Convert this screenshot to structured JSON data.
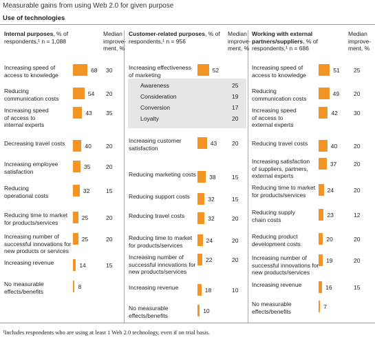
{
  "title": "Measurable gains from using Web 2.0 for given purpose",
  "subtitle": "Use of technologies",
  "footnote": "¹Includes respondents who are using at least 1 Web 2.0 technology, even if on trial basis.",
  "colors": {
    "bar": "#f39525",
    "subpanel": "#e6e6e6"
  },
  "chart_data": [
    {
      "type": "bar",
      "title": "Internal purposes",
      "header_rest": ", % of respondents,¹ n = 1,088",
      "median_header": "Median improve-ment, %",
      "xlim": [
        0,
        100
      ],
      "categories": [
        "Increasing speed of access to knowledge",
        "Reducing communication costs",
        "Increasing speed of access to internal experts",
        "Decreasing travel costs",
        "Increasing employee satisfaction",
        "Reducing operational costs",
        "Reducing time to market for products/services",
        "Increasing number of successful innovations for new products or services",
        "Increasing revenue",
        "No measurable effects/benefits"
      ],
      "label_lines": [
        [
          "Increasing speed of",
          "access to knowledge"
        ],
        [
          "Reducing",
          "communication costs"
        ],
        [
          "Increasing speed",
          "of access to",
          "internal experts"
        ],
        [
          "Decreasing travel costs"
        ],
        [
          "Increasing employee",
          "satisfaction"
        ],
        [
          "Reducing",
          "operational costs"
        ],
        [
          "Reducing time to market",
          "for products/services"
        ],
        [
          "Increasing number of",
          "successful innovations for",
          "new products or services"
        ],
        [
          "Increasing revenue"
        ],
        [
          "No measurable",
          "effects/benefits"
        ]
      ],
      "values": [
        68,
        54,
        43,
        40,
        35,
        32,
        25,
        25,
        14,
        8
      ],
      "median": [
        "30",
        "20",
        "35",
        "20",
        "20",
        "15",
        "20",
        "20",
        "15",
        ""
      ]
    },
    {
      "type": "bar",
      "title": "Customer-related purposes",
      "header_rest": ", % of respondents,¹ n = 956",
      "median_header": "Median improve-ment, %",
      "xlim": [
        0,
        100
      ],
      "categories": [
        "Increasing effectiveness of marketing",
        "Increasing customer satisfaction",
        "Reducing marketing costs",
        "Reducing support costs",
        "Reducing travel costs",
        "Reducing time to market for products/services",
        "Increasing number of successful innovations for new products/services",
        "Increasing revenue",
        "No measurable effects/benefits"
      ],
      "label_lines": [
        [
          "Increasing effectiveness",
          "of marketing"
        ],
        [
          "Increasing customer",
          "satisfaction"
        ],
        [
          "Reducing marketing costs"
        ],
        [
          "Reducing support costs"
        ],
        [
          "Reducing travel costs"
        ],
        [
          "Reducing time to market",
          "for products/services"
        ],
        [
          "Increasing number of",
          "successful innovations for",
          "new products/services"
        ],
        [
          "Increasing revenue"
        ],
        [
          "No measurable",
          "effects/benefits"
        ]
      ],
      "values": [
        52,
        43,
        38,
        32,
        32,
        24,
        22,
        18,
        10
      ],
      "median": [
        "",
        "20",
        "15",
        "15",
        "20",
        "20",
        "20",
        "10",
        ""
      ],
      "sub_items": [
        {
          "label": "Awareness",
          "median": "25"
        },
        {
          "label": "Consideration",
          "median": "19"
        },
        {
          "label": "Conversion",
          "median": "17"
        },
        {
          "label": "Loyalty",
          "median": "20"
        }
      ]
    },
    {
      "type": "bar",
      "title": "Working with external partners/suppliers",
      "header_rest": ", % of respondents,¹ n = 686",
      "median_header": "Median improve-ment, %",
      "xlim": [
        0,
        100
      ],
      "categories": [
        "Increasing speed of access to knowledge",
        "Reducing communication costs",
        "Increasing speed of access to external experts",
        "Reducing travel costs",
        "Increasing satisfaction of suppliers, partners, external experts",
        "Reducing time to market for products/services",
        "Reducing supply chain costs",
        "Reducing product development costs",
        "Increasing number of successful innovations for new products/services",
        "Increasing revenue",
        "No measurable effects/benefits"
      ],
      "label_lines": [
        [
          "Increasing speed of",
          "access to knowledge"
        ],
        [
          "Reducing",
          "communication costs"
        ],
        [
          "Increasing speed",
          "of access to",
          "external experts"
        ],
        [
          "Reducing travel costs"
        ],
        [
          "Increasing satisfaction",
          "of suppliers, partners,",
          "external experts"
        ],
        [
          "Reducing time to market",
          "for products/services"
        ],
        [
          "Reducing supply",
          "chain costs"
        ],
        [
          "Reducing product",
          "development costs"
        ],
        [
          "Increasing number of",
          "successful innovations for",
          "new products/services"
        ],
        [
          "Increasing revenue"
        ],
        [
          "No measurable",
          "effects/benefits"
        ]
      ],
      "values": [
        51,
        49,
        42,
        40,
        37,
        24,
        23,
        20,
        19,
        16,
        7
      ],
      "median": [
        "25",
        "20",
        "30",
        "20",
        "20",
        "20",
        "12",
        "20",
        "20",
        "15",
        ""
      ]
    }
  ]
}
